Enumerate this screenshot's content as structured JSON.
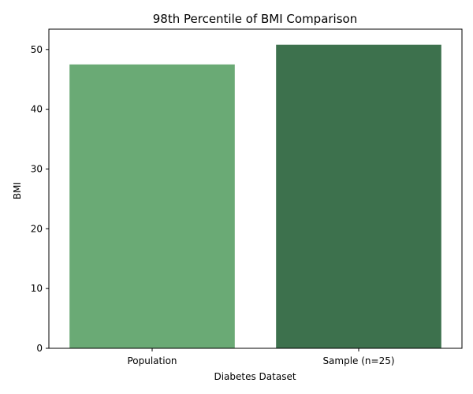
{
  "chart_data": {
    "type": "bar",
    "title": "98th Percentile of BMI Comparison",
    "xlabel": "Diabetes Dataset",
    "ylabel": "BMI",
    "categories": [
      "Population",
      "Sample (n=25)"
    ],
    "values": [
      47.5,
      50.8
    ],
    "colors": [
      "#6aaa75",
      "#3d714d"
    ],
    "ylim": [
      0,
      53.4
    ],
    "yticks": [
      0,
      10,
      20,
      30,
      40,
      50
    ],
    "grid": false,
    "legend": "none"
  }
}
